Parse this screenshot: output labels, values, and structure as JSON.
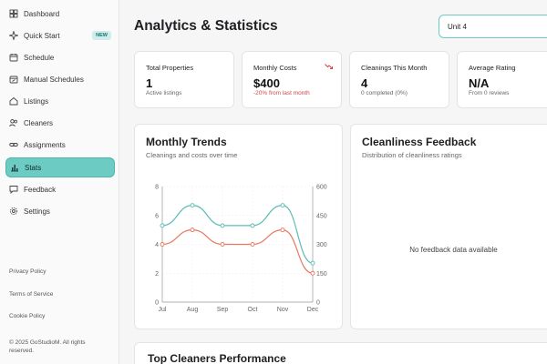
{
  "sidebar": {
    "items": [
      {
        "label": "Dashboard",
        "icon": "dashboard-icon"
      },
      {
        "label": "Quick Start",
        "icon": "sparkle-icon",
        "badge": "NEW"
      },
      {
        "label": "Schedule",
        "icon": "calendar-icon"
      },
      {
        "label": "Manual Schedules",
        "icon": "calendar-edit-icon"
      },
      {
        "label": "Listings",
        "icon": "home-icon"
      },
      {
        "label": "Cleaners",
        "icon": "users-icon"
      },
      {
        "label": "Assignments",
        "icon": "link-icon"
      },
      {
        "label": "Stats",
        "icon": "bar-chart-icon",
        "active": true
      },
      {
        "label": "Feedback",
        "icon": "message-icon"
      },
      {
        "label": "Settings",
        "icon": "gear-icon"
      }
    ],
    "footer": {
      "privacy": "Privacy Policy",
      "terms": "Terms of Service",
      "cookie": "Cookie Policy",
      "copyright": "© 2025 GoStudioM. All rights reserved."
    }
  },
  "header": {
    "title": "Analytics & Statistics",
    "unit_select": "Unit 4"
  },
  "stats": [
    {
      "title": "Total Properties",
      "value": "1",
      "sub": "Active listings"
    },
    {
      "title": "Monthly Costs",
      "value": "$400",
      "sub": "-20% from last month",
      "trend_icon": "trending-down-icon",
      "trend_color": "#d64545"
    },
    {
      "title": "Cleanings This Month",
      "value": "4",
      "sub": "0 completed (0%)"
    },
    {
      "title": "Average Rating",
      "value": "N/A",
      "sub": "From 0 reviews"
    }
  ],
  "trends": {
    "title": "Monthly Trends",
    "subtitle": "Cleanings and costs over time"
  },
  "feedback": {
    "title": "Cleanliness Feedback",
    "subtitle": "Distribution of cleanliness ratings",
    "empty": "No feedback data available"
  },
  "bottom": {
    "title": "Top Cleaners Performance"
  },
  "colors": {
    "accent": "#6ccbc3",
    "cleanings": "#5bbcb4",
    "costs": "#e8775f"
  },
  "chart_data": {
    "type": "line",
    "categories": [
      "Jul",
      "Aug",
      "Sep",
      "Oct",
      "Nov",
      "Dec"
    ],
    "y_left": {
      "ticks": [
        "0",
        "2",
        "4",
        "6",
        "8"
      ],
      "ylim": [
        0,
        8
      ]
    },
    "y_right": {
      "ticks": [
        "0",
        "150",
        "300",
        "450",
        "600"
      ],
      "ylim": [
        0,
        600
      ]
    },
    "series": [
      {
        "key": "cleanings",
        "axis": "left",
        "color": "#5bbcb4",
        "values": [
          5.3,
          6.7,
          5.3,
          5.3,
          6.7,
          2.7
        ]
      },
      {
        "key": "costs",
        "axis": "right",
        "color": "#e8775f",
        "values": [
          300,
          375,
          300,
          300,
          375,
          150
        ]
      }
    ],
    "grid": true
  }
}
